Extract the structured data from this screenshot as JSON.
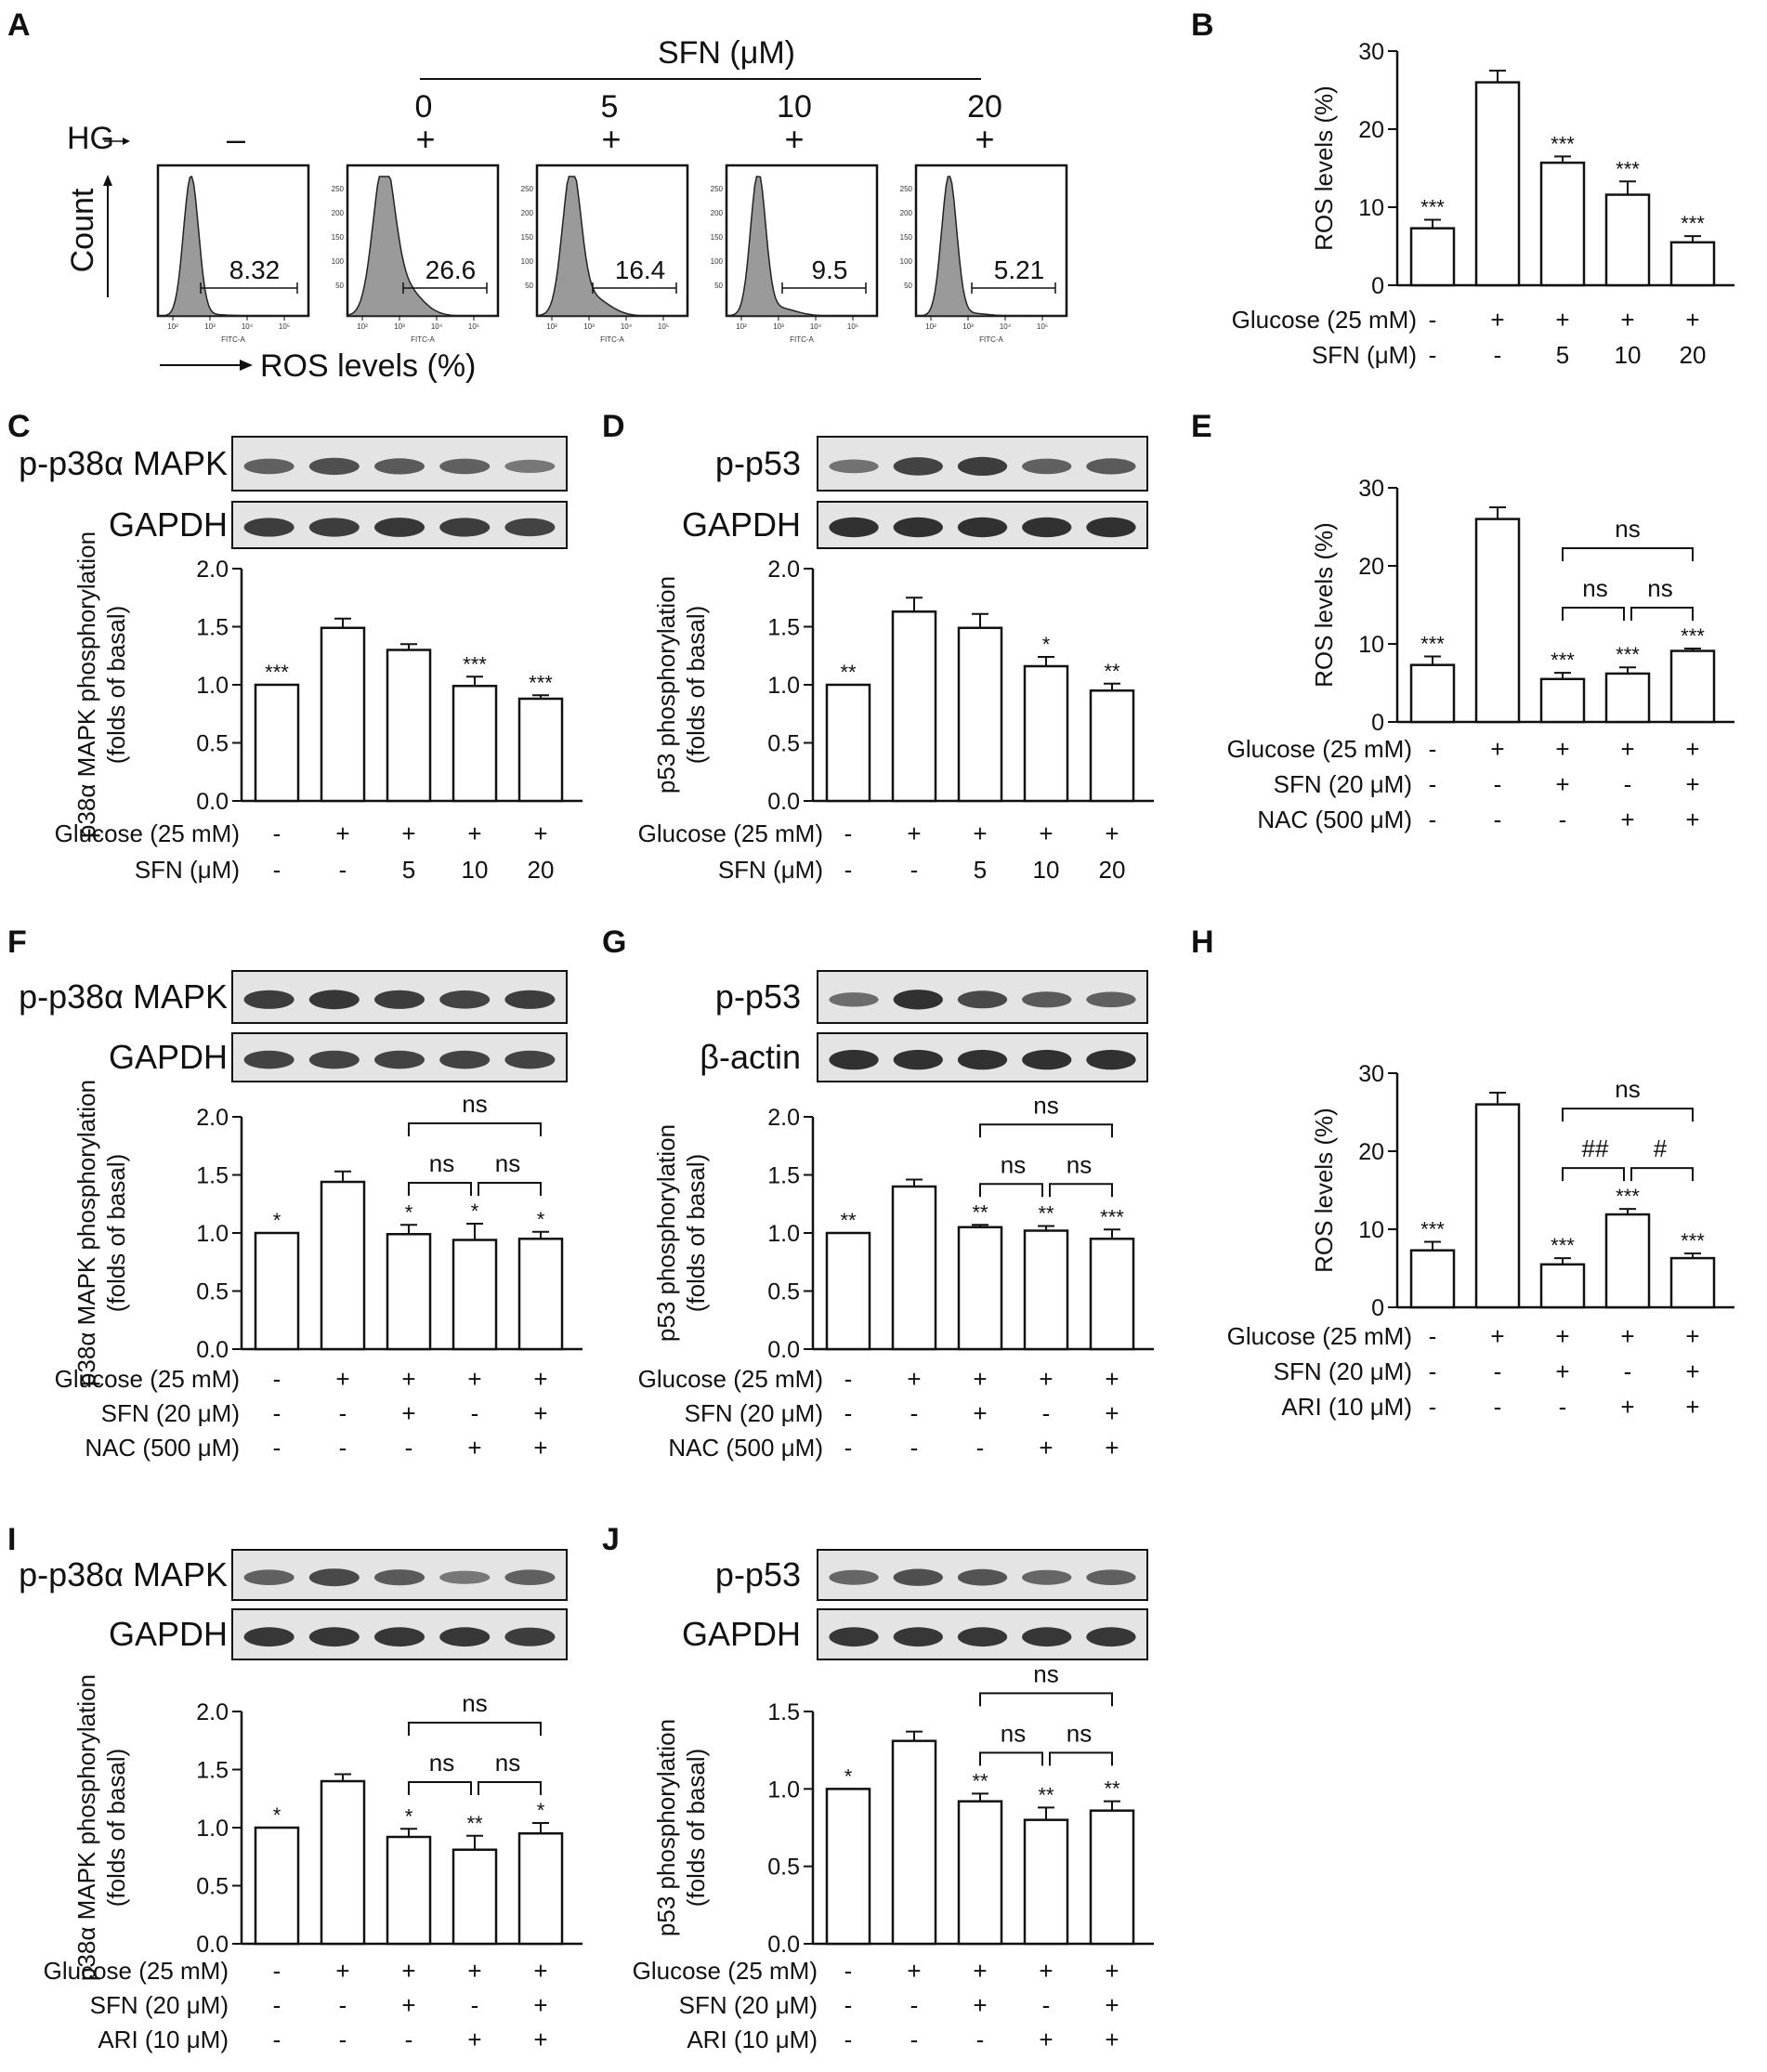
{
  "panel_letters": [
    "A",
    "B",
    "C",
    "D",
    "E",
    "F",
    "G",
    "H",
    "I",
    "J"
  ],
  "panelA": {
    "sfn_header": "SFN (μM)",
    "doses": [
      "0",
      "5",
      "10",
      "20"
    ],
    "hg_label": "HG",
    "hg_row": [
      "–",
      "+",
      "+",
      "+",
      "+"
    ],
    "y_axis_label": "Count",
    "x_axis_label": "ROS levels (%)",
    "histograms": [
      {
        "value": "8.32",
        "peak": 0.22,
        "spread": 0.05,
        "tail": 0.01
      },
      {
        "value": "26.6",
        "peak": 0.24,
        "spread": 0.07,
        "tail": 0.22
      },
      {
        "value": "16.4",
        "peak": 0.23,
        "spread": 0.06,
        "tail": 0.14
      },
      {
        "value": "9.5",
        "peak": 0.21,
        "spread": 0.05,
        "tail": 0.06
      },
      {
        "value": "5.21",
        "peak": 0.22,
        "spread": 0.05,
        "tail": 0.02
      }
    ],
    "mini_axis_label": "FITC-A",
    "mini_yticks": [
      "250",
      "200",
      "150",
      "100",
      "50"
    ],
    "mini_xticks": [
      "10²",
      "10³",
      "10⁴",
      "10⁵"
    ]
  },
  "chart_data": [
    {
      "panel": "B",
      "type": "bar",
      "ylabel": "ROS levels (%)",
      "ylim": [
        0,
        30
      ],
      "yticks": [
        "0",
        "10",
        "20",
        "30"
      ],
      "values": [
        7.3,
        26.0,
        15.7,
        11.6,
        5.5
      ],
      "errors": [
        1.1,
        1.5,
        0.8,
        1.7,
        0.8
      ],
      "stars": [
        "***",
        "",
        "***",
        "***",
        "***"
      ],
      "conditions": [
        {
          "label": "Glucose (25 mM)",
          "values": [
            "-",
            "+",
            "+",
            "+",
            "+"
          ]
        },
        {
          "label": "SFN (μM)",
          "values": [
            "-",
            "-",
            "5",
            "10",
            "20"
          ]
        }
      ],
      "brackets": []
    },
    {
      "panel": "C",
      "type": "bar",
      "ylabel": "p38α MAPK phosphorylation (folds of basal)",
      "ylim": [
        0,
        2
      ],
      "yticks": [
        "0.0",
        "0.5",
        "1.0",
        "1.5",
        "2.0"
      ],
      "values": [
        1.0,
        1.49,
        1.3,
        0.99,
        0.88
      ],
      "errors": [
        0,
        0.08,
        0.05,
        0.08,
        0.03
      ],
      "stars": [
        "***",
        "",
        "",
        "***",
        "***"
      ],
      "conditions": [
        {
          "label": "Glucose (25 mM)",
          "values": [
            "-",
            "+",
            "+",
            "+",
            "+"
          ]
        },
        {
          "label": "SFN (μM)",
          "values": [
            "-",
            "-",
            "5",
            "10",
            "20"
          ]
        }
      ],
      "brackets": [],
      "blots": [
        {
          "label": "p-p38α MAPK"
        },
        {
          "label": "GAPDH"
        }
      ]
    },
    {
      "panel": "D",
      "type": "bar",
      "ylabel": "p53  phosphorylation (folds of basal)",
      "ylim": [
        0,
        2
      ],
      "yticks": [
        "0.0",
        "0.5",
        "1.0",
        "1.5",
        "2.0"
      ],
      "values": [
        1.0,
        1.63,
        1.49,
        1.16,
        0.95
      ],
      "errors": [
        0,
        0.12,
        0.12,
        0.08,
        0.06
      ],
      "stars": [
        "**",
        "",
        "",
        "*",
        "**"
      ],
      "conditions": [
        {
          "label": "Glucose (25 mM)",
          "values": [
            "-",
            "+",
            "+",
            "+",
            "+"
          ]
        },
        {
          "label": "SFN (μM)",
          "values": [
            "-",
            "-",
            "5",
            "10",
            "20"
          ]
        }
      ],
      "brackets": [],
      "blots": [
        {
          "label": "p-p53"
        },
        {
          "label": "GAPDH"
        }
      ]
    },
    {
      "panel": "E",
      "type": "bar",
      "ylabel": "ROS levels (%)",
      "ylim": [
        0,
        30
      ],
      "yticks": [
        "0",
        "10",
        "20",
        "30"
      ],
      "values": [
        7.3,
        26.0,
        5.5,
        6.2,
        9.1
      ],
      "errors": [
        1.1,
        1.5,
        0.8,
        0.8,
        0.3
      ],
      "stars": [
        "***",
        "",
        "***",
        "***",
        "***"
      ],
      "conditions": [
        {
          "label": "Glucose (25 mM)",
          "values": [
            "-",
            "+",
            "+",
            "+",
            "+"
          ]
        },
        {
          "label": "SFN (20 μM)",
          "values": [
            "-",
            "-",
            "+",
            "-",
            "+"
          ]
        },
        {
          "label": "NAC (500 μM)",
          "values": [
            "-",
            "-",
            "-",
            "+",
            "+"
          ]
        }
      ],
      "brackets": [
        {
          "from": 2,
          "to": 3,
          "label": "ns",
          "level": 0
        },
        {
          "from": 3,
          "to": 4,
          "label": "ns",
          "level": 0
        },
        {
          "from": 2,
          "to": 4,
          "label": "ns",
          "level": 1
        }
      ]
    },
    {
      "panel": "F",
      "type": "bar",
      "ylabel": "p38α MAPK phosphorylation (folds of basal)",
      "ylim": [
        0,
        2
      ],
      "yticks": [
        "0.0",
        "0.5",
        "1.0",
        "1.5",
        "2.0"
      ],
      "values": [
        1.0,
        1.44,
        0.99,
        0.94,
        0.95
      ],
      "errors": [
        0,
        0.09,
        0.08,
        0.14,
        0.06
      ],
      "stars": [
        "*",
        "",
        "*",
        "*",
        "*"
      ],
      "conditions": [
        {
          "label": "Glucose (25 mM)",
          "values": [
            "-",
            "+",
            "+",
            "+",
            "+"
          ]
        },
        {
          "label": "SFN (20 μM)",
          "values": [
            "-",
            "-",
            "+",
            "-",
            "+"
          ]
        },
        {
          "label": "NAC (500 μM)",
          "values": [
            "-",
            "-",
            "-",
            "+",
            "+"
          ]
        }
      ],
      "brackets": [
        {
          "from": 2,
          "to": 3,
          "label": "ns",
          "level": 0
        },
        {
          "from": 3,
          "to": 4,
          "label": "ns",
          "level": 0
        },
        {
          "from": 2,
          "to": 4,
          "label": "ns",
          "level": 1
        }
      ],
      "blots": [
        {
          "label": "p-p38α MAPK"
        },
        {
          "label": "GAPDH"
        }
      ]
    },
    {
      "panel": "G",
      "type": "bar",
      "ylabel": "p53  phosphorylation (folds of basal)",
      "ylim": [
        0,
        2
      ],
      "yticks": [
        "0.0",
        "0.5",
        "1.0",
        "1.5",
        "2.0"
      ],
      "values": [
        1.0,
        1.4,
        1.05,
        1.02,
        0.95
      ],
      "errors": [
        0,
        0.06,
        0.02,
        0.04,
        0.08
      ],
      "stars": [
        "**",
        "",
        "**",
        "**",
        "***"
      ],
      "conditions": [
        {
          "label": "Glucose (25 mM)",
          "values": [
            "-",
            "+",
            "+",
            "+",
            "+"
          ]
        },
        {
          "label": "SFN (20 μM)",
          "values": [
            "-",
            "-",
            "+",
            "-",
            "+"
          ]
        },
        {
          "label": "NAC (500 μM)",
          "values": [
            "-",
            "-",
            "-",
            "+",
            "+"
          ]
        }
      ],
      "brackets": [
        {
          "from": 2,
          "to": 3,
          "label": "ns",
          "level": 0
        },
        {
          "from": 3,
          "to": 4,
          "label": "ns",
          "level": 0
        },
        {
          "from": 2,
          "to": 4,
          "label": "ns",
          "level": 1
        }
      ],
      "blots": [
        {
          "label": "p-p53"
        },
        {
          "label": "β-actin"
        }
      ]
    },
    {
      "panel": "H",
      "type": "bar",
      "ylabel": "ROS levels (%)",
      "ylim": [
        0,
        30
      ],
      "yticks": [
        "0",
        "10",
        "20",
        "30"
      ],
      "values": [
        7.3,
        26.0,
        5.5,
        11.9,
        6.3
      ],
      "errors": [
        1.1,
        1.5,
        0.8,
        0.7,
        0.6
      ],
      "stars": [
        "***",
        "",
        "***",
        "***",
        "***"
      ],
      "conditions": [
        {
          "label": "Glucose (25 mM)",
          "values": [
            "-",
            "+",
            "+",
            "+",
            "+"
          ]
        },
        {
          "label": "SFN (20 μM)",
          "values": [
            "-",
            "-",
            "+",
            "-",
            "+"
          ]
        },
        {
          "label": "ARI (10 μM)",
          "values": [
            "-",
            "-",
            "-",
            "+",
            "+"
          ]
        }
      ],
      "brackets": [
        {
          "from": 2,
          "to": 3,
          "label": "##",
          "level": 0
        },
        {
          "from": 3,
          "to": 4,
          "label": "#",
          "level": 0
        },
        {
          "from": 2,
          "to": 4,
          "label": "ns",
          "level": 1
        }
      ]
    },
    {
      "panel": "I",
      "type": "bar",
      "ylabel": "p38α MAPK phosphorylation (folds of basal)",
      "ylim": [
        0,
        2
      ],
      "yticks": [
        "0.0",
        "0.5",
        "1.0",
        "1.5",
        "2.0"
      ],
      "values": [
        1.0,
        1.4,
        0.92,
        0.81,
        0.95
      ],
      "errors": [
        0,
        0.06,
        0.07,
        0.12,
        0.09
      ],
      "stars": [
        "*",
        "",
        "*",
        "**",
        "*"
      ],
      "conditions": [
        {
          "label": "Glucose (25 mM)",
          "values": [
            "-",
            "+",
            "+",
            "+",
            "+"
          ]
        },
        {
          "label": "SFN (20 μM)",
          "values": [
            "-",
            "-",
            "+",
            "-",
            "+"
          ]
        },
        {
          "label": "ARI (10 μM)",
          "values": [
            "-",
            "-",
            "-",
            "+",
            "+"
          ]
        }
      ],
      "brackets": [
        {
          "from": 2,
          "to": 3,
          "label": "ns",
          "level": 0
        },
        {
          "from": 3,
          "to": 4,
          "label": "ns",
          "level": 0
        },
        {
          "from": 2,
          "to": 4,
          "label": "ns",
          "level": 1
        }
      ],
      "blots": [
        {
          "label": "p-p38α MAPK"
        },
        {
          "label": "GAPDH"
        }
      ]
    },
    {
      "panel": "J",
      "type": "bar",
      "ylabel": "p53  phosphorylation (folds of basal)",
      "ylim": [
        0,
        1.5
      ],
      "yticks": [
        "0.0",
        "0.5",
        "1.0",
        "1.5"
      ],
      "values": [
        1.0,
        1.31,
        0.92,
        0.8,
        0.86
      ],
      "errors": [
        0,
        0.06,
        0.05,
        0.08,
        0.06
      ],
      "stars": [
        "*",
        "",
        "**",
        "**",
        "**"
      ],
      "conditions": [
        {
          "label": "Glucose (25 mM)",
          "values": [
            "-",
            "+",
            "+",
            "+",
            "+"
          ]
        },
        {
          "label": "SFN (20 μM)",
          "values": [
            "-",
            "-",
            "+",
            "-",
            "+"
          ]
        },
        {
          "label": "ARI (10 μM)",
          "values": [
            "-",
            "-",
            "-",
            "+",
            "+"
          ]
        }
      ],
      "brackets": [
        {
          "from": 2,
          "to": 3,
          "label": "ns",
          "level": 0
        },
        {
          "from": 3,
          "to": 4,
          "label": "ns",
          "level": 0
        },
        {
          "from": 2,
          "to": 4,
          "label": "ns",
          "level": 1
        }
      ],
      "blots": [
        {
          "label": "p-p53"
        },
        {
          "label": "GAPDH"
        }
      ]
    }
  ],
  "blot_bands": {
    "C": [
      [
        0.55,
        0.7,
        0.6,
        0.55,
        0.35
      ],
      [
        0.85,
        0.85,
        0.9,
        0.85,
        0.8
      ]
    ],
    "D": [
      [
        0.4,
        0.8,
        0.85,
        0.55,
        0.6
      ],
      [
        0.95,
        0.95,
        0.95,
        0.95,
        0.95
      ]
    ],
    "F": [
      [
        0.85,
        0.9,
        0.85,
        0.8,
        0.85
      ],
      [
        0.8,
        0.8,
        0.8,
        0.8,
        0.8
      ]
    ],
    "G": [
      [
        0.45,
        0.95,
        0.75,
        0.6,
        0.55
      ],
      [
        0.95,
        0.95,
        0.95,
        0.95,
        0.95
      ]
    ],
    "I": [
      [
        0.55,
        0.75,
        0.6,
        0.35,
        0.55
      ],
      [
        0.9,
        0.9,
        0.9,
        0.9,
        0.85
      ]
    ],
    "J": [
      [
        0.5,
        0.7,
        0.65,
        0.5,
        0.55
      ],
      [
        0.9,
        0.9,
        0.9,
        0.9,
        0.9
      ]
    ]
  }
}
